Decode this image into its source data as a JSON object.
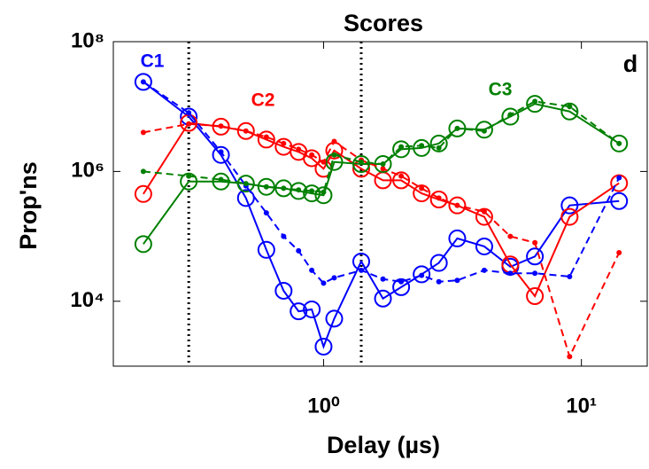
{
  "chart_data": {
    "type": "line",
    "title": "Scores",
    "xlabel": "Delay (µs)",
    "ylabel": "Prop'ns",
    "panel_label": "d",
    "xscale": "log",
    "yscale": "log",
    "xlim": [
      0.153,
      18
    ],
    "ylim": [
      1000,
      100000000
    ],
    "xticks": [
      {
        "value": 1,
        "label": "10⁰"
      },
      {
        "value": 10,
        "label": "10¹"
      }
    ],
    "yticks": [
      {
        "value": 10000,
        "label": "10⁴"
      },
      {
        "value": 1000000,
        "label": "10⁶"
      },
      {
        "value": 100000000,
        "label": "10⁸"
      }
    ],
    "vlines": [
      0.3,
      1.4
    ],
    "x": [
      0.2,
      0.3,
      0.4,
      0.5,
      0.6,
      0.7,
      0.8,
      0.9,
      1.0,
      1.1,
      1.4,
      1.7,
      2,
      2.4,
      2.8,
      3.3,
      4.2,
      5.3,
      6.6,
      9,
      14
    ],
    "series": [
      {
        "name": "C1",
        "color": "#0000ff",
        "linestyle": "solid",
        "marker": "circle",
        "values": [
          24000000,
          7000000,
          1800000,
          390000,
          62000,
          14500,
          7000,
          7500,
          2000,
          5400,
          41000,
          11000,
          16500,
          26000,
          39000,
          93000,
          70000,
          34000,
          49000,
          300000,
          350000
        ]
      },
      {
        "name": "C2",
        "color": "#ff0000",
        "linestyle": "solid",
        "marker": "circle",
        "values": [
          450000,
          5600000,
          4900000,
          4200000,
          3100000,
          2400000,
          2000000,
          1600000,
          1100000,
          2100000,
          1100000,
          730000,
          730000,
          460000,
          370000,
          300000,
          200000,
          37000,
          12000,
          200000,
          660000
        ]
      },
      {
        "name": "C3",
        "color": "#008000",
        "linestyle": "solid",
        "marker": "circle",
        "values": [
          76000,
          700000,
          700000,
          650000,
          580000,
          550000,
          500000,
          460000,
          430000,
          1400000,
          1300000,
          1300000,
          2200000,
          2300000,
          2700000,
          4600000,
          4400000,
          7000000,
          11000000,
          8400000,
          2700000
        ]
      },
      {
        "color": "#0000ff",
        "linestyle": "dashed",
        "marker": "dot",
        "values": [
          24000000,
          8000000,
          2000000,
          600000,
          230000,
          100000,
          60000,
          30000,
          19000,
          23000,
          30000,
          22000,
          20000,
          25000,
          20000,
          21000,
          30000,
          27000,
          27000,
          24000,
          800000
        ]
      },
      {
        "color": "#ff0000",
        "linestyle": "dashed",
        "marker": "dot",
        "values": [
          4000000,
          5400000,
          5000000,
          4200000,
          3400000,
          2700000,
          2200000,
          1800000,
          1400000,
          2900000,
          1500000,
          1100000,
          850000,
          550000,
          390000,
          300000,
          240000,
          100000,
          80000,
          1400,
          56000
        ]
      },
      {
        "color": "#008000",
        "linestyle": "dashed",
        "marker": "dot",
        "values": [
          1000000,
          850000,
          750000,
          650000,
          580000,
          550000,
          520000,
          500000,
          480000,
          1800000,
          1400000,
          1300000,
          2400000,
          2500000,
          2300000,
          4600000,
          4200000,
          7500000,
          12000000,
          10000000,
          2700000
        ]
      }
    ]
  }
}
